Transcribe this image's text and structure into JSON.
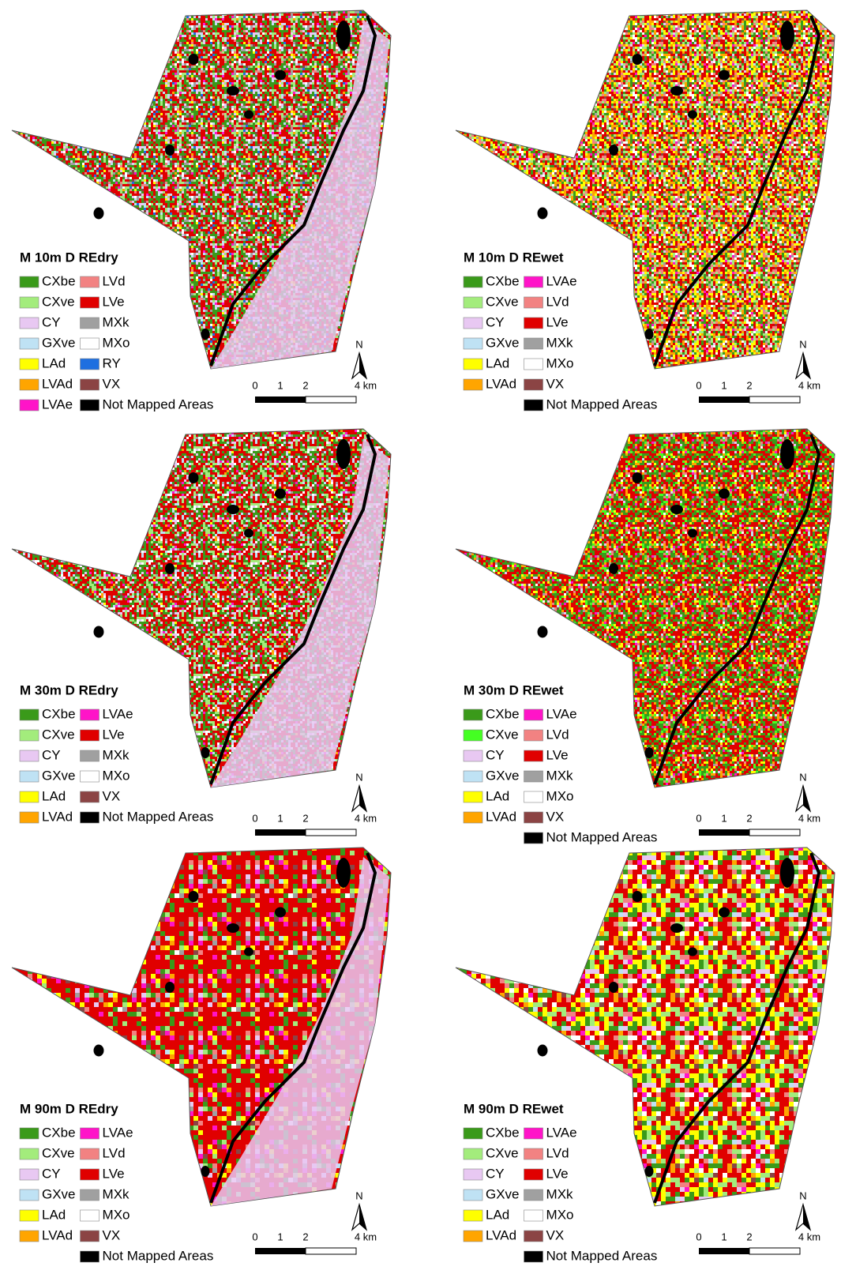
{
  "panels": [
    {
      "title": "M 10m D REdry",
      "legend": {
        "columns": [
          [
            {
              "label": "CXbe",
              "color": "#3a9a1a"
            },
            {
              "label": "CXve",
              "color": "#a3ec7c"
            },
            {
              "label": "CY",
              "color": "#e8c8f2"
            },
            {
              "label": "GXve",
              "color": "#bfe2f4"
            },
            {
              "label": "LAd",
              "color": "#ffff00"
            },
            {
              "label": "LVAd",
              "color": "#ffa500"
            },
            {
              "label": "LVAe",
              "color": "#ff14c8"
            }
          ],
          [
            {
              "label": "LVd",
              "color": "#f28282"
            },
            {
              "label": "LVe",
              "color": "#e00000"
            },
            {
              "label": "MXk",
              "color": "#a0a0a0"
            },
            {
              "label": "MXo",
              "color": "#ffffff"
            },
            {
              "label": "RY",
              "color": "#1e6fe0"
            },
            {
              "label": "VX",
              "color": "#8b4444"
            },
            {
              "label": "Not Mapped Areas",
              "color": "#000000"
            }
          ]
        ]
      },
      "north": "N",
      "scale": [
        "0",
        "1",
        "2",
        "4 km"
      ]
    },
    {
      "title": "M 10m D REwet",
      "legend": {
        "columns": [
          [
            {
              "label": "CXbe",
              "color": "#3a9a1a"
            },
            {
              "label": "CXve",
              "color": "#a3ec7c"
            },
            {
              "label": "CY",
              "color": "#e8c8f2"
            },
            {
              "label": "GXve",
              "color": "#bfe2f4"
            },
            {
              "label": "LAd",
              "color": "#ffff00"
            },
            {
              "label": "LVAd",
              "color": "#ffa500"
            }
          ],
          [
            {
              "label": "LVAe",
              "color": "#ff14c8"
            },
            {
              "label": "LVd",
              "color": "#f28282"
            },
            {
              "label": "LVe",
              "color": "#e00000"
            },
            {
              "label": "MXk",
              "color": "#a0a0a0"
            },
            {
              "label": "MXo",
              "color": "#ffffff"
            },
            {
              "label": "VX",
              "color": "#8b4444"
            },
            {
              "label": "Not Mapped Areas",
              "color": "#000000"
            }
          ]
        ]
      },
      "north": "N",
      "scale": [
        "0",
        "1",
        "2",
        "4 km"
      ]
    },
    {
      "title": "M 30m D REdry",
      "legend": {
        "columns": [
          [
            {
              "label": "CXbe",
              "color": "#3a9a1a"
            },
            {
              "label": "CXve",
              "color": "#a3ec7c"
            },
            {
              "label": "CY",
              "color": "#e8c8f2"
            },
            {
              "label": "GXve",
              "color": "#bfe2f4"
            },
            {
              "label": "LAd",
              "color": "#ffff00"
            },
            {
              "label": "LVAd",
              "color": "#ffa500"
            }
          ],
          [
            {
              "label": "LVAe",
              "color": "#ff14c8"
            },
            {
              "label": "LVe",
              "color": "#e00000"
            },
            {
              "label": "MXk",
              "color": "#a0a0a0"
            },
            {
              "label": "MXo",
              "color": "#ffffff"
            },
            {
              "label": "VX",
              "color": "#8b4444"
            },
            {
              "label": "Not Mapped Areas",
              "color": "#000000"
            }
          ]
        ]
      },
      "north": "N",
      "scale": [
        "0",
        "1",
        "2",
        "4 km"
      ]
    },
    {
      "title": "M 30m D REwet",
      "legend": {
        "columns": [
          [
            {
              "label": "CXbe",
              "color": "#3a9a1a"
            },
            {
              "label": "CXve",
              "color": "#44ff22"
            },
            {
              "label": "CY",
              "color": "#e8c8f2"
            },
            {
              "label": "GXve",
              "color": "#bfe2f4"
            },
            {
              "label": "LAd",
              "color": "#ffff00"
            },
            {
              "label": "LVAd",
              "color": "#ffa500"
            }
          ],
          [
            {
              "label": "LVAe",
              "color": "#ff14c8"
            },
            {
              "label": "LVd",
              "color": "#f28282"
            },
            {
              "label": "LVe",
              "color": "#e00000"
            },
            {
              "label": "MXk",
              "color": "#a0a0a0"
            },
            {
              "label": "MXo",
              "color": "#ffffff"
            },
            {
              "label": "VX",
              "color": "#8b4444"
            },
            {
              "label": "Not Mapped Areas",
              "color": "#000000"
            }
          ]
        ]
      },
      "north": "N",
      "scale": [
        "0",
        "1",
        "2",
        "4 km"
      ]
    },
    {
      "title": "M 90m D REdry",
      "legend": {
        "columns": [
          [
            {
              "label": "CXbe",
              "color": "#3a9a1a"
            },
            {
              "label": "CXve",
              "color": "#a3ec7c"
            },
            {
              "label": "CY",
              "color": "#e8c8f2"
            },
            {
              "label": "GXve",
              "color": "#bfe2f4"
            },
            {
              "label": "LAd",
              "color": "#ffff00"
            },
            {
              "label": "LVAd",
              "color": "#ffa500"
            }
          ],
          [
            {
              "label": "LVAe",
              "color": "#ff14c8"
            },
            {
              "label": "LVd",
              "color": "#f28282"
            },
            {
              "label": "LVe",
              "color": "#e00000"
            },
            {
              "label": "MXk",
              "color": "#a0a0a0"
            },
            {
              "label": "MXo",
              "color": "#ffffff"
            },
            {
              "label": "VX",
              "color": "#8b4444"
            },
            {
              "label": "Not Mapped Areas",
              "color": "#000000"
            }
          ]
        ]
      },
      "north": "N",
      "scale": [
        "0",
        "1",
        "2",
        "4 km"
      ]
    },
    {
      "title": "M 90m D REwet",
      "legend": {
        "columns": [
          [
            {
              "label": "CXbe",
              "color": "#3a9a1a"
            },
            {
              "label": "CXve",
              "color": "#a3ec7c"
            },
            {
              "label": "CY",
              "color": "#e8c8f2"
            },
            {
              "label": "GXve",
              "color": "#bfe2f4"
            },
            {
              "label": "LAd",
              "color": "#ffff00"
            },
            {
              "label": "LVAd",
              "color": "#ffa500"
            }
          ],
          [
            {
              "label": "LVAe",
              "color": "#ff14c8"
            },
            {
              "label": "LVd",
              "color": "#f28282"
            },
            {
              "label": "LVe",
              "color": "#e00000"
            },
            {
              "label": "MXk",
              "color": "#a0a0a0"
            },
            {
              "label": "MXo",
              "color": "#ffffff"
            },
            {
              "label": "VX",
              "color": "#8b4444"
            },
            {
              "label": "Not Mapped Areas",
              "color": "#000000"
            }
          ]
        ]
      },
      "north": "N",
      "scale": [
        "0",
        "1",
        "2",
        "4 km"
      ]
    }
  ]
}
